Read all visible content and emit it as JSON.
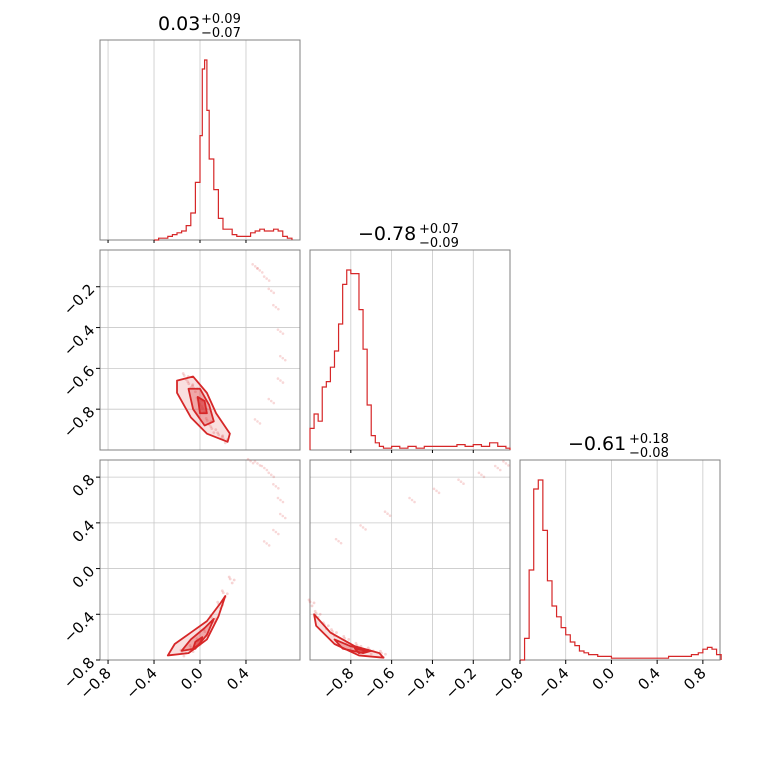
{
  "colors": {
    "accent": "#d62728",
    "grid": "#c8c8c8",
    "frame": "#808080"
  },
  "chart_data": {
    "type": "corner",
    "parameters": [
      {
        "title_main": "0.03",
        "title_plus": "+0.09",
        "title_minus": "−0.07",
        "range": [
          -0.87,
          0.87
        ],
        "hist_ticks": [
          -0.8,
          -0.4,
          0.0,
          0.4
        ],
        "tick_labels": [
          "−0.8",
          "−0.4",
          "0.0",
          "0.4"
        ],
        "hist_bin_width": 0.04,
        "hist_x": [
          -0.4,
          -0.36,
          -0.32,
          -0.28,
          -0.24,
          -0.2,
          -0.16,
          -0.12,
          -0.08,
          -0.04,
          0.0,
          0.02,
          0.04,
          0.06,
          0.08,
          0.12,
          0.16,
          0.2,
          0.28,
          0.32,
          0.36,
          0.4,
          0.44,
          0.48,
          0.52,
          0.56,
          0.6,
          0.64,
          0.68,
          0.72,
          0.76
        ],
        "hist_y": [
          0.0,
          0.01,
          0.01,
          0.02,
          0.03,
          0.04,
          0.05,
          0.08,
          0.15,
          0.32,
          0.58,
          0.95,
          1.0,
          0.72,
          0.45,
          0.28,
          0.12,
          0.06,
          0.03,
          0.02,
          0.02,
          0.02,
          0.04,
          0.05,
          0.06,
          0.05,
          0.05,
          0.06,
          0.05,
          0.02,
          0.01
        ]
      },
      {
        "title_main": "−0.78",
        "title_plus": "+0.07",
        "title_minus": "−0.09",
        "range": [
          -1.0,
          -0.02
        ],
        "hist_ticks": [
          -0.8,
          -0.6,
          -0.4,
          -0.2
        ],
        "tick_labels": [
          "−0.8",
          "−0.6",
          "−0.4",
          "−0.2"
        ],
        "hist_bin_width": 0.02,
        "hist_x": [
          -1.0,
          -0.98,
          -0.96,
          -0.94,
          -0.92,
          -0.9,
          -0.88,
          -0.86,
          -0.84,
          -0.82,
          -0.8,
          -0.78,
          -0.76,
          -0.74,
          -0.72,
          -0.7,
          -0.68,
          -0.66,
          -0.64,
          -0.62,
          -0.6,
          -0.56,
          -0.52,
          -0.48,
          -0.44,
          -0.4,
          -0.36,
          -0.32,
          -0.28,
          -0.24,
          -0.2,
          -0.16,
          -0.12,
          -0.08,
          -0.04
        ],
        "hist_y": [
          0.12,
          0.2,
          0.16,
          0.35,
          0.38,
          0.46,
          0.55,
          0.7,
          0.92,
          1.0,
          0.98,
          0.98,
          0.78,
          0.56,
          0.25,
          0.08,
          0.04,
          0.02,
          0.01,
          0.01,
          0.02,
          0.01,
          0.02,
          0.01,
          0.02,
          0.02,
          0.02,
          0.02,
          0.03,
          0.02,
          0.03,
          0.02,
          0.04,
          0.02,
          0.01
        ]
      },
      {
        "title_main": "−0.61",
        "title_plus": "+0.18",
        "title_minus": "−0.08",
        "range": [
          -0.8,
          0.95
        ],
        "hist_ticks": [
          -0.8,
          -0.4,
          0.0,
          0.4,
          0.8
        ],
        "tick_labels": [
          "−0.8",
          "−0.4",
          "0.0",
          "0.4",
          "0.8"
        ],
        "hist_bin_width": 0.04,
        "hist_x": [
          -0.8,
          -0.76,
          -0.72,
          -0.68,
          -0.64,
          -0.6,
          -0.56,
          -0.52,
          -0.48,
          -0.44,
          -0.4,
          -0.36,
          -0.32,
          -0.28,
          -0.24,
          -0.2,
          -0.16,
          -0.12,
          -0.08,
          -0.04,
          0.0,
          0.1,
          0.2,
          0.3,
          0.4,
          0.5,
          0.6,
          0.7,
          0.76,
          0.8,
          0.84,
          0.88,
          0.92
        ],
        "hist_y": [
          0.0,
          0.12,
          0.5,
          0.95,
          1.0,
          0.72,
          0.44,
          0.3,
          0.24,
          0.18,
          0.14,
          0.1,
          0.08,
          0.05,
          0.04,
          0.03,
          0.03,
          0.02,
          0.02,
          0.02,
          0.01,
          0.01,
          0.01,
          0.01,
          0.01,
          0.02,
          0.02,
          0.03,
          0.04,
          0.06,
          0.07,
          0.06,
          0.03
        ]
      }
    ],
    "left_axis_ticks": {
      "row1": {
        "values": [
          -0.8,
          -0.6,
          -0.4,
          -0.2
        ],
        "labels": [
          "−0.8",
          "−0.6",
          "−0.4",
          "−0.2"
        ]
      },
      "row2": {
        "values": [
          -0.8,
          -0.4,
          0.0,
          0.4,
          0.8
        ],
        "labels": [
          "−0.8",
          "−0.4",
          "0.0",
          "0.4",
          "0.8"
        ]
      }
    },
    "bottom_axis_ticks": {
      "col0": {
        "values": [
          -0.8,
          -0.4,
          0.0,
          0.4
        ],
        "labels": [
          "−0.8",
          "−0.4",
          "0.0",
          "0.4"
        ]
      },
      "col1": {
        "values": [
          -0.8,
          -0.6,
          -0.4,
          -0.2
        ],
        "labels": [
          "−0.8",
          "−0.6",
          "−0.4",
          "−0.2"
        ]
      },
      "col2": {
        "values": [
          -0.8,
          -0.4,
          0.0,
          0.4,
          0.8
        ],
        "labels": [
          "−0.8",
          "−0.4",
          "0.0",
          "0.4",
          "0.8"
        ]
      }
    },
    "scatter": {
      "p0_p1_core": [
        [
          -0.12,
          -0.64
        ],
        [
          -0.08,
          -0.68
        ],
        [
          -0.04,
          -0.7
        ],
        [
          0.0,
          -0.76
        ],
        [
          0.04,
          -0.8
        ],
        [
          0.08,
          -0.86
        ],
        [
          0.12,
          -0.9
        ],
        [
          0.18,
          -0.93
        ],
        [
          0.22,
          -0.95
        ]
      ],
      "p0_p1_tail": [
        [
          0.48,
          -0.1
        ],
        [
          0.52,
          -0.12
        ],
        [
          0.58,
          -0.16
        ],
        [
          0.62,
          -0.22
        ],
        [
          0.66,
          -0.3
        ],
        [
          0.7,
          -0.42
        ],
        [
          0.72,
          -0.55
        ],
        [
          0.7,
          -0.66
        ],
        [
          0.62,
          -0.76
        ],
        [
          0.5,
          -0.86
        ]
      ],
      "p0_p2_core": [
        [
          -0.14,
          -0.74
        ],
        [
          -0.06,
          -0.7
        ],
        [
          0.0,
          -0.64
        ],
        [
          0.06,
          -0.56
        ],
        [
          0.12,
          -0.44
        ],
        [
          0.18,
          -0.32
        ],
        [
          0.22,
          -0.22
        ],
        [
          0.28,
          -0.1
        ]
      ],
      "p0_p2_tail": [
        [
          0.44,
          0.94
        ],
        [
          0.5,
          0.92
        ],
        [
          0.56,
          0.88
        ],
        [
          0.62,
          0.82
        ],
        [
          0.66,
          0.72
        ],
        [
          0.7,
          0.6
        ],
        [
          0.72,
          0.46
        ],
        [
          0.66,
          0.32
        ],
        [
          0.58,
          0.22
        ]
      ],
      "p1_p2_core": [
        [
          -0.99,
          -0.3
        ],
        [
          -0.96,
          -0.4
        ],
        [
          -0.92,
          -0.5
        ],
        [
          -0.88,
          -0.56
        ],
        [
          -0.82,
          -0.62
        ],
        [
          -0.76,
          -0.68
        ],
        [
          -0.7,
          -0.72
        ],
        [
          -0.64,
          -0.75
        ]
      ],
      "p1_p2_tail": [
        [
          -0.86,
          0.24
        ],
        [
          -0.74,
          0.36
        ],
        [
          -0.62,
          0.48
        ],
        [
          -0.5,
          0.6
        ],
        [
          -0.38,
          0.68
        ],
        [
          -0.26,
          0.76
        ],
        [
          -0.16,
          0.82
        ],
        [
          -0.08,
          0.88
        ],
        [
          -0.04,
          0.92
        ]
      ]
    },
    "contours": {
      "p0_p1": [
        {
          "level": "outer",
          "points": [
            [
              -0.2,
              -0.66
            ],
            [
              -0.06,
              -0.64
            ],
            [
              0.06,
              -0.72
            ],
            [
              0.14,
              -0.82
            ],
            [
              0.26,
              -0.92
            ],
            [
              0.24,
              -0.96
            ],
            [
              0.06,
              -0.92
            ],
            [
              -0.08,
              -0.84
            ],
            [
              -0.2,
              -0.72
            ]
          ]
        },
        {
          "level": "inner",
          "points": [
            [
              -0.1,
              -0.7
            ],
            [
              0.0,
              -0.7
            ],
            [
              0.08,
              -0.78
            ],
            [
              0.12,
              -0.86
            ],
            [
              0.04,
              -0.88
            ],
            [
              -0.06,
              -0.8
            ]
          ]
        },
        {
          "level": "core",
          "points": [
            [
              -0.02,
              -0.74
            ],
            [
              0.04,
              -0.76
            ],
            [
              0.06,
              -0.82
            ],
            [
              0.0,
              -0.82
            ]
          ]
        }
      ],
      "p0_p2": [
        {
          "level": "outer",
          "points": [
            [
              -0.28,
              -0.76
            ],
            [
              -0.1,
              -0.74
            ],
            [
              0.06,
              -0.62
            ],
            [
              0.16,
              -0.42
            ],
            [
              0.22,
              -0.24
            ],
            [
              0.18,
              -0.3
            ],
            [
              0.06,
              -0.46
            ],
            [
              -0.08,
              -0.56
            ],
            [
              -0.22,
              -0.66
            ]
          ]
        },
        {
          "level": "inner",
          "points": [
            [
              -0.16,
              -0.72
            ],
            [
              -0.04,
              -0.7
            ],
            [
              0.06,
              -0.58
            ],
            [
              0.12,
              -0.44
            ],
            [
              0.04,
              -0.52
            ],
            [
              -0.08,
              -0.62
            ]
          ]
        },
        {
          "level": "core",
          "points": [
            [
              -0.06,
              -0.7
            ],
            [
              0.0,
              -0.66
            ],
            [
              0.02,
              -0.6
            ],
            [
              -0.04,
              -0.64
            ]
          ]
        }
      ],
      "p1_p2": [
        {
          "level": "outer",
          "points": [
            [
              -0.98,
              -0.4
            ],
            [
              -0.9,
              -0.56
            ],
            [
              -0.78,
              -0.68
            ],
            [
              -0.66,
              -0.74
            ],
            [
              -0.64,
              -0.78
            ],
            [
              -0.76,
              -0.76
            ],
            [
              -0.88,
              -0.66
            ],
            [
              -0.97,
              -0.5
            ]
          ]
        },
        {
          "level": "inner",
          "points": [
            [
              -0.88,
              -0.62
            ],
            [
              -0.8,
              -0.68
            ],
            [
              -0.7,
              -0.72
            ],
            [
              -0.74,
              -0.74
            ],
            [
              -0.84,
              -0.7
            ]
          ]
        },
        {
          "level": "core",
          "points": [
            [
              -0.78,
              -0.7
            ],
            [
              -0.72,
              -0.72
            ],
            [
              -0.76,
              -0.74
            ]
          ]
        }
      ]
    },
    "grid": true
  }
}
